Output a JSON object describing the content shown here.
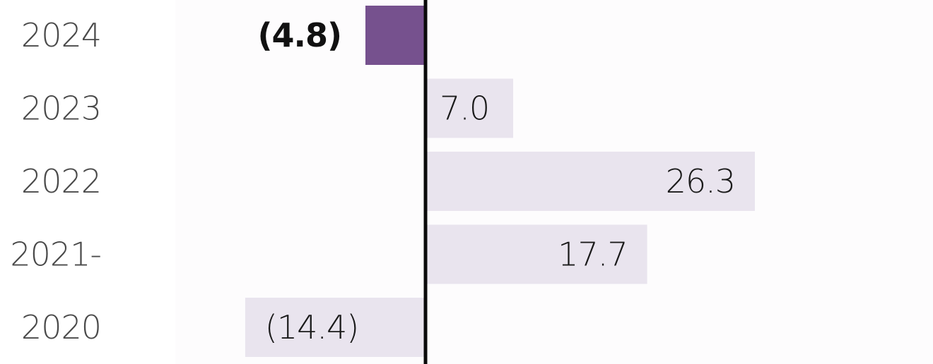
{
  "chart_data": {
    "type": "bar",
    "orientation": "horizontal",
    "categories": [
      "2024",
      "2023",
      "2022",
      "2021-",
      "2020"
    ],
    "values": [
      -4.8,
      7.0,
      26.3,
      17.7,
      -14.4
    ],
    "value_labels": [
      "(4.8)",
      "7.0",
      "26.3",
      "17.7",
      "(14.4)"
    ],
    "highlight_index": 0,
    "xlim": [
      -15.3,
      26.3
    ],
    "zero_line": true,
    "grid": false,
    "colors": {
      "highlight": "#76518e",
      "bar": "#e9e4ee",
      "axis": "#0a0a0a",
      "category_text": "#4a4a4a",
      "value_text": "#1a1a1a"
    }
  }
}
